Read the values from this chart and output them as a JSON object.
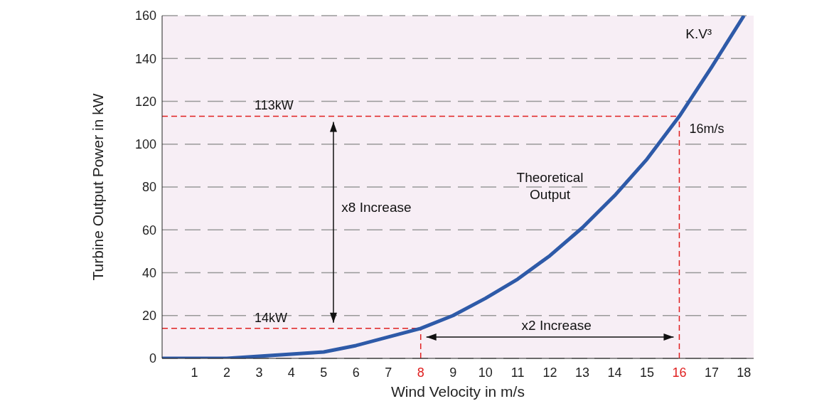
{
  "chart_data": {
    "type": "line",
    "xlabel": "Wind Velocity in m/s",
    "ylabel": "Turbine Output Power in kW",
    "x": [
      0,
      1,
      2,
      3,
      4,
      5,
      6,
      7,
      8,
      9,
      10,
      11,
      12,
      13,
      14,
      15,
      16,
      17,
      18
    ],
    "series": [
      {
        "color": "#2e5aa8",
        "values": [
          0,
          0,
          0,
          1,
          2,
          3,
          6,
          10,
          14,
          20,
          28,
          37,
          48,
          61,
          76,
          93,
          113,
          136,
          160
        ]
      }
    ],
    "xlim": [
      0,
      18.3
    ],
    "xticks": [
      1,
      2,
      3,
      4,
      5,
      6,
      7,
      8,
      9,
      10,
      11,
      12,
      13,
      14,
      15,
      16,
      17,
      18
    ],
    "ylim": [
      0,
      160
    ],
    "yticks": [
      0,
      20,
      40,
      60,
      80,
      100,
      120,
      140,
      160
    ],
    "grid": "y",
    "marker": "none",
    "line_style": "solid",
    "ref_lines": [
      {
        "axis": "y",
        "value": 113,
        "label": "113kW",
        "color": "#e02020",
        "line_style": "dashed"
      },
      {
        "axis": "x",
        "value": 16,
        "label": "16m/s",
        "color": "#e02020",
        "line_style": "dashed"
      },
      {
        "axis": "y",
        "value": 14,
        "label": "14kW",
        "color": "#e02020",
        "line_style": "dashed"
      },
      {
        "axis": "x",
        "value": 8,
        "color": "#e02020",
        "line_style": "dashed"
      }
    ],
    "annotations": [
      "K.V³",
      "Theoretical Output",
      "x8 Increase",
      "x2 Increase"
    ]
  }
}
